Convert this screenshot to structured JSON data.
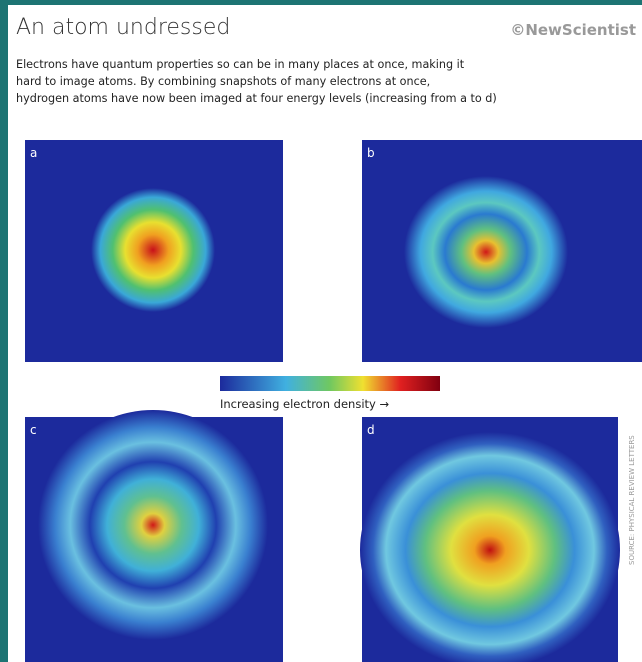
{
  "header": {
    "title": "An atom undressed",
    "brand": "©NewScientist"
  },
  "description": [
    "Electrons have quantum properties so can be in many places at once, making it",
    "hard to image atoms. By combining snapshots of many electrons at once,",
    "hydrogen atoms have now been imaged at four energy levels (increasing from a to d)"
  ],
  "panels": [
    {
      "label": "a"
    },
    {
      "label": "b"
    },
    {
      "label": "c"
    },
    {
      "label": "d"
    }
  ],
  "colorbar": {
    "label": "Increasing electron density →"
  },
  "source": "SOURCE: PHYSICAL REVIEW LETTERS"
}
